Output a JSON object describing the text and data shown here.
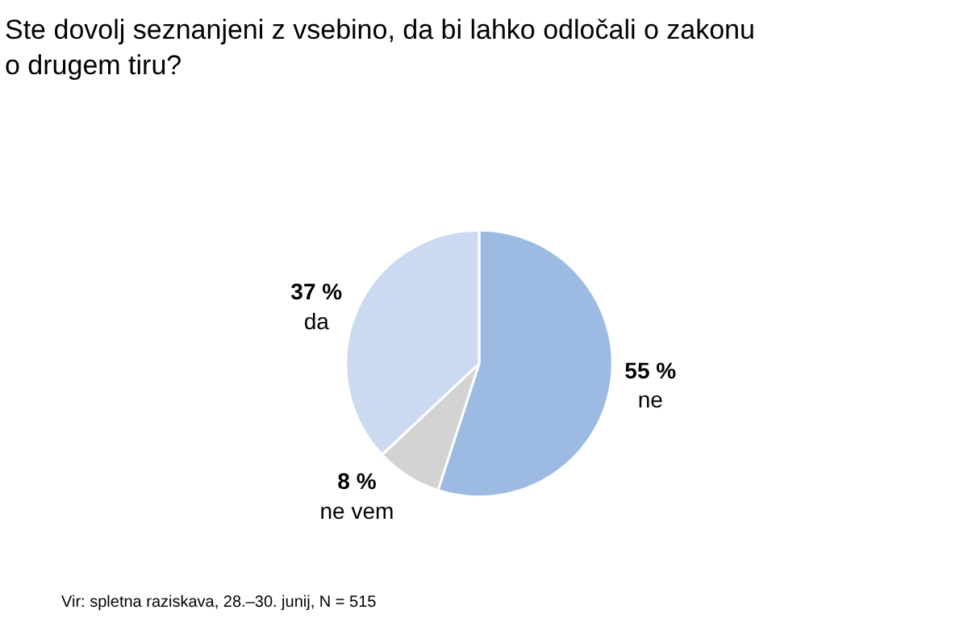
{
  "chart_data": {
    "type": "pie",
    "title": "Ste dovolj seznanjeni z vsebino, da bi lahko odločali o zakonu o drugem tiru?",
    "categories": [
      "ne",
      "ne vem",
      "da"
    ],
    "values": [
      55,
      8,
      37
    ],
    "value_labels": [
      "55 %",
      "8 %",
      "37 %"
    ],
    "colors": [
      "#9dbae3",
      "#d3d3d3",
      "#ccdaf1"
    ],
    "annotations": [
      "Vir: spletna raziskava, 28.–30. junij, N = 515"
    ]
  }
}
